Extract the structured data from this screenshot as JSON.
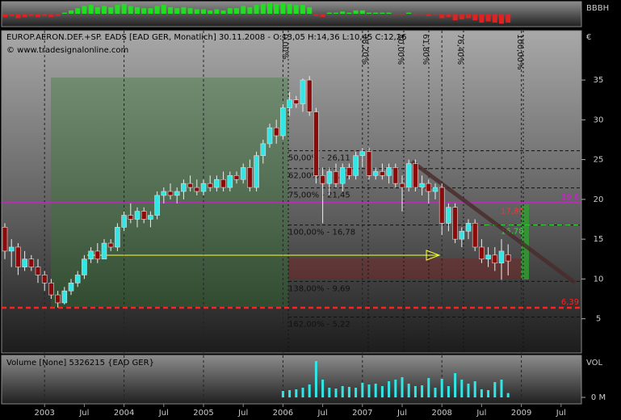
{
  "chart_data": [
    {
      "type": "bar",
      "title": "BBBH",
      "up_color": "#22dd22",
      "down_color": "#dd2222",
      "values": [
        -0.3,
        -0.2,
        -0.4,
        -0.3,
        -0.2,
        -0.3,
        -0.2,
        -0.3,
        -0.2,
        0.1,
        0.3,
        0.5,
        0.7,
        0.8,
        0.6,
        0.7,
        0.6,
        0.8,
        0.9,
        0.7,
        0.6,
        0.5,
        0.5,
        0.7,
        0.8,
        0.6,
        0.5,
        0.6,
        0.5,
        0.4,
        0.4,
        0.3,
        0.4,
        0.3,
        0.5,
        0.5,
        0.7,
        0.6,
        0.8,
        0.9,
        1,
        0.9,
        1,
        0.9,
        0.8,
        0.8,
        0.6,
        -0.2,
        -0.3,
        0.1,
        0.1,
        0.2,
        0.1,
        0.3,
        0.3,
        0.1,
        0.1,
        0.1,
        0.1,
        -0.1,
        -0.1,
        0.1,
        -0.1,
        -0.1,
        -0.2,
        -0.1,
        -0.4,
        -0.3,
        -0.6,
        -0.5,
        -0.4,
        -0.6,
        -0.8,
        -0.7,
        -0.8,
        -0.9,
        -0.8
      ],
      "ylim": [
        -1.1,
        1.1
      ]
    },
    {
      "type": "candlestick",
      "header": "EUROP.AERON.DEF.+SP. EADS [EAD GER, Monatlich] 30.11.2008 - O:13,05 H:14,36 L:10,45 C:12,26",
      "source": "© www.tradesignalonline.com",
      "unit": "€",
      "up_color": "#33e6e6",
      "down_color": "#8b0a0a",
      "x": [
        "2002-07",
        "2002-08",
        "2002-09",
        "2002-10",
        "2002-11",
        "2002-12",
        "2003-01",
        "2003-02",
        "2003-03",
        "2003-04",
        "2003-05",
        "2003-06",
        "2003-07",
        "2003-08",
        "2003-09",
        "2003-10",
        "2003-11",
        "2003-12",
        "2004-01",
        "2004-02",
        "2004-03",
        "2004-04",
        "2004-05",
        "2004-06",
        "2004-07",
        "2004-08",
        "2004-09",
        "2004-10",
        "2004-11",
        "2004-12",
        "2005-01",
        "2005-02",
        "2005-03",
        "2005-04",
        "2005-05",
        "2005-06",
        "2005-07",
        "2005-08",
        "2005-09",
        "2005-10",
        "2005-11",
        "2005-12",
        "2006-01",
        "2006-02",
        "2006-03",
        "2006-04",
        "2006-05",
        "2006-06",
        "2006-07",
        "2006-08",
        "2006-09",
        "2006-10",
        "2006-11",
        "2006-12",
        "2007-01",
        "2007-02",
        "2007-03",
        "2007-04",
        "2007-05",
        "2007-06",
        "2007-07",
        "2007-08",
        "2007-09",
        "2007-10",
        "2007-11",
        "2007-12",
        "2008-01",
        "2008-02",
        "2008-03",
        "2008-04",
        "2008-05",
        "2008-06",
        "2008-07",
        "2008-08",
        "2008-09",
        "2008-10",
        "2008-11"
      ],
      "open": [
        16.5,
        13.5,
        14,
        11.5,
        12.5,
        11.5,
        10.5,
        9.5,
        8,
        7,
        8.5,
        9.5,
        10.5,
        12.5,
        13.5,
        12.5,
        14.5,
        14,
        16.5,
        18,
        17.5,
        18.5,
        17.5,
        18,
        20.5,
        21,
        20.5,
        21,
        22,
        21.5,
        21,
        22,
        21.5,
        22.5,
        21.5,
        23,
        22.5,
        24,
        21.5,
        25.5,
        27,
        29,
        28,
        31.5,
        32.5,
        32,
        35,
        31,
        23,
        22,
        23.5,
        22,
        24,
        23,
        25.5,
        26,
        23,
        23.5,
        23,
        24,
        22,
        21.5,
        24.5,
        21.5,
        22,
        21,
        21.5,
        17,
        19,
        15,
        16,
        17,
        14,
        12.5,
        13,
        12,
        13.05
      ],
      "high": [
        17,
        15,
        14.5,
        13.5,
        13,
        12.5,
        11,
        10,
        8.5,
        9,
        10,
        11,
        13,
        14,
        14.5,
        15,
        15,
        17,
        18.5,
        19.5,
        19,
        19,
        18.5,
        21,
        21.5,
        22,
        21.5,
        22.5,
        23,
        22.5,
        22.5,
        23,
        23,
        23.5,
        23.5,
        23.5,
        24.5,
        25,
        26,
        27.5,
        29.5,
        30,
        32,
        33.5,
        33,
        35.2,
        35.5,
        31.5,
        24,
        24,
        24.5,
        24.5,
        24.5,
        26,
        26.5,
        26.5,
        24,
        24.5,
        24.5,
        24.5,
        23,
        25,
        25,
        23,
        22.5,
        22,
        22,
        19.5,
        19.5,
        16.5,
        17.5,
        17.5,
        15,
        14,
        14,
        15,
        14.36
      ],
      "low": [
        12.5,
        11.5,
        10.5,
        11,
        11,
        9.5,
        8.5,
        7.5,
        6.4,
        6.8,
        8,
        9,
        10,
        12,
        12,
        12.5,
        13.5,
        13.5,
        16,
        17,
        16.5,
        17,
        16.5,
        17.5,
        19.5,
        20,
        19.5,
        20,
        21,
        20.5,
        20.5,
        21,
        21,
        21,
        21,
        22,
        22,
        21,
        21,
        24.5,
        26.5,
        27,
        27.5,
        30.5,
        31.5,
        31,
        30.5,
        22,
        17,
        20.5,
        21.5,
        21,
        22.5,
        22.5,
        24,
        22.5,
        22.5,
        22.5,
        22,
        21.5,
        18.5,
        21,
        21,
        20.5,
        19.5,
        20,
        15.5,
        16,
        14.5,
        14,
        15,
        13.5,
        12,
        11.5,
        11,
        9.9,
        10.45
      ],
      "close": [
        13.5,
        14,
        11.5,
        12.5,
        11.5,
        10.5,
        9.5,
        8,
        7,
        8.5,
        9.5,
        10.5,
        12.5,
        13.5,
        12.5,
        14.5,
        14,
        16.5,
        18,
        17.5,
        18.5,
        17.5,
        18,
        20.5,
        21,
        20.5,
        21,
        22,
        21.5,
        21,
        22,
        21.5,
        22.5,
        21.5,
        23,
        22.5,
        24,
        21.5,
        25.5,
        27,
        29,
        28,
        31.5,
        32.5,
        32,
        35,
        31,
        23,
        22,
        23.5,
        22,
        24,
        23,
        25.5,
        26,
        23,
        23.5,
        23,
        24,
        22,
        21.5,
        24.5,
        21.5,
        22,
        21,
        21.5,
        17,
        19,
        15,
        16,
        17,
        14,
        12.5,
        13,
        12,
        13.5,
        12.26
      ],
      "ylim": [
        0.7,
        41.2
      ],
      "yticks": [
        5,
        10,
        15,
        20,
        25,
        30,
        35
      ],
      "xticks": [
        {
          "value": "2003-01",
          "label": "2003"
        },
        {
          "value": "2003-07",
          "label": "Jul"
        },
        {
          "value": "2004-01",
          "label": "2004"
        },
        {
          "value": "2004-07",
          "label": "Jul"
        },
        {
          "value": "2005-01",
          "label": "2005"
        },
        {
          "value": "2005-07",
          "label": "Jul"
        },
        {
          "value": "2006-01",
          "label": "2006"
        },
        {
          "value": "2006-07",
          "label": "Jul"
        },
        {
          "value": "2007-01",
          "label": "2007"
        },
        {
          "value": "2007-07",
          "label": "Jul"
        },
        {
          "value": "2008-01",
          "label": "2008"
        },
        {
          "value": "2008-07",
          "label": "Jul"
        },
        {
          "value": "2009-01",
          "label": "2009"
        },
        {
          "value": "2009-07",
          "label": "Jul"
        }
      ],
      "fib_levels": [
        {
          "value": 26.11,
          "label": "50,00% - 26,11"
        },
        {
          "value": 23.87,
          "label": "62,00% - 23,87"
        },
        {
          "value": 21.45,
          "label": "75,00% - 21,45"
        },
        {
          "value": 16.78,
          "label": "100,00% - 16,78"
        },
        {
          "value": 9.69,
          "label": "138,00% - 9,69"
        },
        {
          "value": 5.22,
          "label": "162,00% - 5,22"
        }
      ],
      "fib_time_labels": [
        "0,00%",
        "38,20%",
        "50,00%",
        "61,80%",
        "76,40%",
        "100,00%"
      ],
      "levels": [
        {
          "value": 19.6,
          "label": "19,6",
          "color": "#d020d0",
          "line": true
        },
        {
          "value": 6.39,
          "label": "6,39",
          "color": "#ff2020",
          "line": true
        },
        {
          "value": 16.78,
          "label": "16,78",
          "color": "#33dd33",
          "line": true
        },
        {
          "value": 17.8,
          "label": "17,80",
          "color": "#ff3030",
          "line": false
        }
      ]
    },
    {
      "type": "bar",
      "title": "Volume [None] 5326215 {EAD GER}",
      "axis_label": "VOL",
      "color": "#33e6e6",
      "values": [
        null,
        null,
        null,
        null,
        null,
        null,
        null,
        null,
        null,
        null,
        null,
        null,
        null,
        null,
        null,
        null,
        null,
        null,
        null,
        null,
        null,
        null,
        null,
        null,
        null,
        null,
        null,
        null,
        null,
        null,
        null,
        null,
        null,
        null,
        null,
        null,
        null,
        null,
        null,
        null,
        null,
        null,
        8000000,
        9000000,
        10000000,
        12000000,
        16000000,
        45000000,
        22000000,
        12000000,
        11000000,
        14000000,
        13000000,
        12000000,
        18000000,
        16000000,
        17000000,
        14000000,
        20000000,
        22000000,
        25000000,
        17000000,
        14000000,
        15000000,
        24000000,
        12000000,
        23000000,
        14000000,
        30000000,
        22000000,
        17000000,
        20000000,
        10000000,
        9000000,
        19000000,
        22000000,
        5326215
      ],
      "ylim": [
        0,
        50000000
      ],
      "yticks": [
        {
          "value": 0,
          "label": "0 M"
        }
      ]
    }
  ]
}
